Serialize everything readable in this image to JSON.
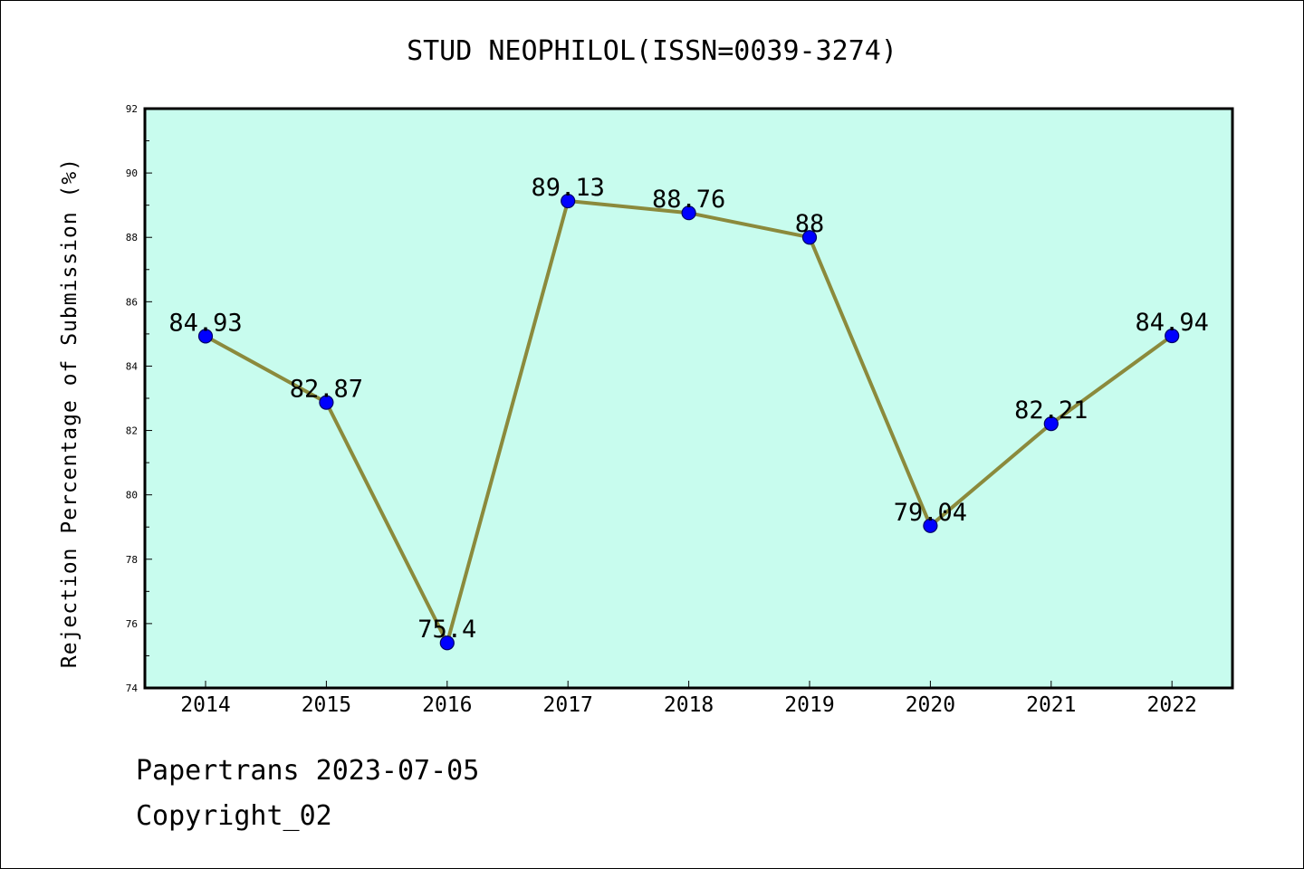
{
  "chart_data": {
    "type": "line",
    "title": "STUD NEOPHILOL(ISSN=0039-3274)",
    "xlabel": "",
    "ylabel": "Rejection Percentage of Submission (%)",
    "categories": [
      "2014",
      "2015",
      "2016",
      "2017",
      "2018",
      "2019",
      "2020",
      "2021",
      "2022"
    ],
    "series": [
      {
        "values": [
          84.93,
          82.87,
          75.4,
          89.13,
          88.76,
          88,
          79.04,
          82.21,
          84.94
        ]
      }
    ],
    "data_labels": [
      "84.93",
      "82.87",
      "75.4",
      "89.13",
      "88.76",
      "88",
      "79.04",
      "82.21",
      "84.94"
    ],
    "ylim": [
      74,
      92
    ],
    "yticks": [
      74,
      76,
      78,
      80,
      82,
      84,
      86,
      88,
      90,
      92
    ],
    "ytick_labels": [
      "74",
      "76",
      "78",
      "80",
      "82",
      "84",
      "86",
      "88",
      "90",
      "92"
    ],
    "grid": false,
    "legend": "none",
    "colors": {
      "plot_background": "#c8fcee",
      "line": "#8b8a3c",
      "marker_fill": "#0000ff",
      "marker_edge": "#000066",
      "axes": "#000000"
    }
  },
  "footer": {
    "line1": "Papertrans 2023-07-05",
    "line2": "Copyright_02"
  }
}
